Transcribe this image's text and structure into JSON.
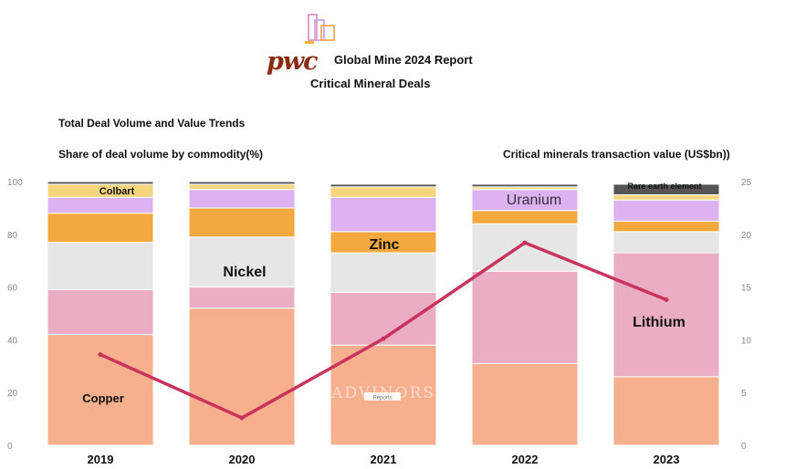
{
  "header": {
    "brand": "pwc",
    "report_title": "Global Mine 2024 Report",
    "chart_title": "Critical Mineral Deals",
    "logo_icon": "building-blocks-icon"
  },
  "section_title": "Total Deal  Volume and Value Trends",
  "left_axis_title": "Share of deal volume by commodity(%)",
  "right_axis_title": "Critical minerals transaction value (US$bn))",
  "watermark": {
    "text": "ADVINORS",
    "badge": "Reports"
  },
  "chart_data": {
    "type": "bar",
    "stacked": true,
    "categories": [
      "2019",
      "2020",
      "2021",
      "2022",
      "2023"
    ],
    "series": [
      {
        "key": "copper",
        "color": "#f6b08e",
        "values": [
          42,
          52,
          38,
          31,
          26
        ]
      },
      {
        "key": "lithium",
        "color": "#eaadc4",
        "values": [
          17,
          8,
          20,
          35,
          47
        ]
      },
      {
        "key": "nickel",
        "color": "#e6e6e6",
        "values": [
          18,
          19,
          15,
          18,
          8
        ]
      },
      {
        "key": "zinc",
        "color": "#f3a93d",
        "values": [
          11,
          11,
          8,
          5,
          4
        ]
      },
      {
        "key": "uranium",
        "color": "#dcb2f3",
        "values": [
          6,
          7,
          13,
          8,
          8
        ]
      },
      {
        "key": "cobalt",
        "color": "#f6d57e",
        "values": [
          5,
          2,
          4,
          1,
          2
        ]
      },
      {
        "key": "rare_earth_element",
        "color": "#555555",
        "values": [
          1,
          1,
          1,
          1,
          4
        ]
      }
    ],
    "line": {
      "color": "#c9335c",
      "values": [
        8.6,
        2.6,
        10.1,
        19.2,
        13.8
      ]
    },
    "left_axis": {
      "min": 0,
      "max": 100,
      "ticks": [
        "0",
        "20",
        "40",
        "60",
        "80",
        "100"
      ]
    },
    "right_axis": {
      "min": 0,
      "max": 25,
      "ticks": [
        "0",
        "5",
        "10",
        "15",
        "20",
        "25"
      ]
    },
    "labels": {
      "copper": "Copper",
      "colbart": "Colbart",
      "nickel": "Nickel",
      "zinc": "Zinc",
      "uranium": "Uranium",
      "lithium": "Lithium",
      "rare_earth_element": "Rare earth element"
    },
    "grid": false
  }
}
